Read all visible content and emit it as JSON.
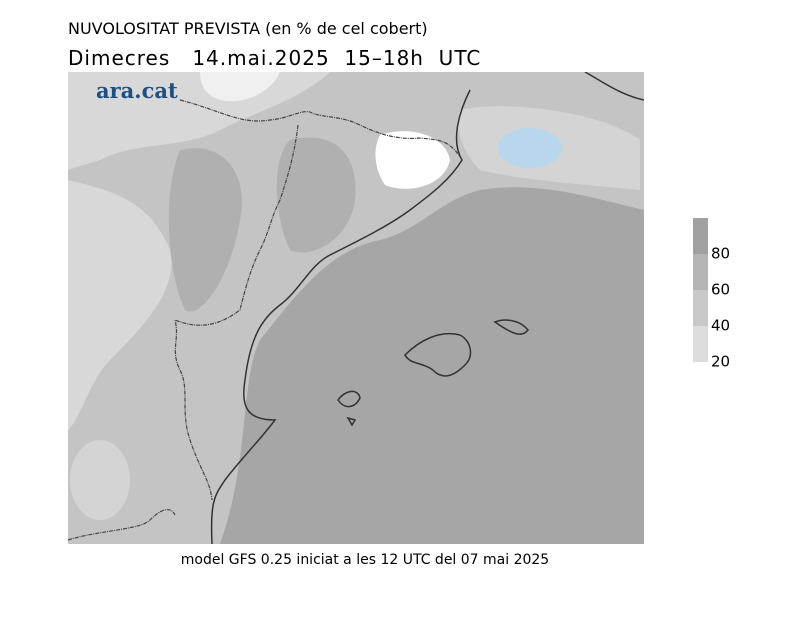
{
  "header": {
    "title": "NUVOLOSITAT PREVISTA (en % de cel cobert)",
    "subtitle": "Dimecres   14.mai.2025  15–18h  UTC"
  },
  "map": {
    "logo": "ara.cat"
  },
  "legend": {
    "ticks": [
      20,
      40,
      60,
      80
    ],
    "colors": [
      "#dcdcdc",
      "#c8c8c8",
      "#b4b4b4",
      "#a0a0a0"
    ]
  },
  "footer": {
    "text": "model GFS 0.25 iniciat a les 12 UTC del 07 mai 2025"
  }
}
